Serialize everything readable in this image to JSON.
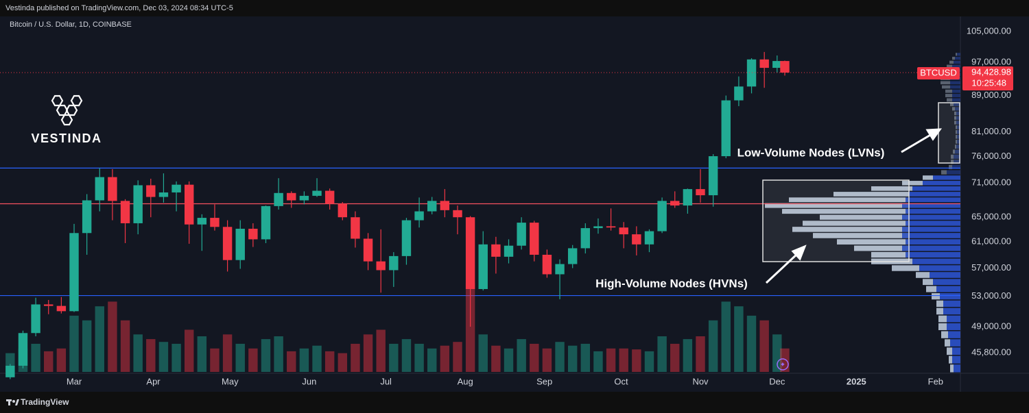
{
  "header": {
    "text": "Vestinda published on TradingView.com, Dec 03, 2024 08:34 UTC-5"
  },
  "footer": {
    "text": "TradingView"
  },
  "logo": {
    "text": "VESTINDA"
  },
  "chart_data": {
    "type": "candlestick",
    "title": "Bitcoin / U.S. Dollar, 1D, COINBASE",
    "log": true,
    "colors": {
      "up": "#22ab94",
      "down": "#f23645",
      "profile_total": "#2a4fc4",
      "profile_up": "#b2bfd0"
    },
    "xlim": [
      33.7,
      406.7
    ],
    "xticks": [
      {
        "value": 60,
        "label": "Mar"
      },
      {
        "value": 91,
        "label": "Apr"
      },
      {
        "value": 121,
        "label": "May"
      },
      {
        "value": 152,
        "label": "Jun"
      },
      {
        "value": 182,
        "label": "Jul"
      },
      {
        "value": 213,
        "label": "Aug"
      },
      {
        "value": 244,
        "label": "Sep"
      },
      {
        "value": 274,
        "label": "Oct"
      },
      {
        "value": 305,
        "label": "Nov"
      },
      {
        "value": 335,
        "label": "Dec"
      },
      {
        "value": 366,
        "label": "2025"
      },
      {
        "value": 397,
        "label": "Feb"
      }
    ],
    "ylim": [
      43600,
      108400
    ],
    "yticks": [
      {
        "value": 105000,
        "label": "105,000.00"
      },
      {
        "value": 97000,
        "label": "97,000.00"
      },
      {
        "value": 89000,
        "label": "89,000.00"
      },
      {
        "value": 81000,
        "label": "81,000.00"
      },
      {
        "value": 76000,
        "label": "76,000.00"
      },
      {
        "value": 71000,
        "label": "71,000.00"
      },
      {
        "value": 65000,
        "label": "65,000.00"
      },
      {
        "value": 61000,
        "label": "61,000.00"
      },
      {
        "value": 57000,
        "label": "57,000.00"
      },
      {
        "value": 53000,
        "label": "53,000.00"
      },
      {
        "value": 49000,
        "label": "49,000.00"
      },
      {
        "value": 45800,
        "label": "45,800.00"
      }
    ],
    "candles": {
      "x": [
        35,
        40,
        45,
        50,
        55,
        60,
        65,
        70,
        75,
        80,
        85,
        90,
        95,
        100,
        105,
        110,
        115,
        120,
        125,
        130,
        135,
        140,
        145,
        150,
        155,
        160,
        165,
        170,
        175,
        180,
        185,
        190,
        195,
        200,
        205,
        210,
        215,
        220,
        225,
        230,
        235,
        240,
        245,
        250,
        255,
        260,
        265,
        270,
        275,
        280,
        285,
        290,
        295,
        300,
        305,
        310,
        315,
        320,
        325,
        330,
        335,
        338
      ],
      "ohlc": [
        [
          43000,
          44500,
          42800,
          44300
        ],
        [
          44300,
          48500,
          44000,
          48200
        ],
        [
          48200,
          52800,
          47800,
          51900
        ],
        [
          51900,
          52500,
          50600,
          51700
        ],
        [
          51700,
          52900,
          50700,
          51000
        ],
        [
          51000,
          63900,
          50900,
          62400
        ],
        [
          62400,
          69000,
          59000,
          67900
        ],
        [
          67900,
          73800,
          66000,
          72100
        ],
        [
          72100,
          73600,
          64500,
          67800
        ],
        [
          67800,
          68100,
          60800,
          64000
        ],
        [
          64000,
          71500,
          62200,
          70600
        ],
        [
          70600,
          71800,
          65000,
          68500
        ],
        [
          68500,
          72800,
          67500,
          69300
        ],
        [
          69300,
          71300,
          66000,
          70700
        ],
        [
          70700,
          71300,
          60700,
          63800
        ],
        [
          63800,
          65500,
          59600,
          64900
        ],
        [
          64900,
          67200,
          62800,
          63400
        ],
        [
          63400,
          64500,
          56500,
          58200
        ],
        [
          58200,
          64500,
          56900,
          63100
        ],
        [
          63100,
          64000,
          60200,
          61400
        ],
        [
          61400,
          67000,
          60800,
          66900
        ],
        [
          66900,
          71900,
          66300,
          69200
        ],
        [
          69200,
          69500,
          66600,
          67900
        ],
        [
          67900,
          69500,
          67200,
          68700
        ],
        [
          68700,
          71900,
          68500,
          69600
        ],
        [
          69600,
          70000,
          66300,
          67300
        ],
        [
          67300,
          67600,
          64500,
          65000
        ],
        [
          65000,
          66000,
          60100,
          61500
        ],
        [
          61500,
          62400,
          56700,
          58000
        ],
        [
          58000,
          63000,
          53500,
          56700
        ],
        [
          56700,
          59400,
          54300,
          58800
        ],
        [
          58800,
          64900,
          57500,
          64500
        ],
        [
          64500,
          68400,
          63300,
          66000
        ],
        [
          66000,
          68500,
          65500,
          67800
        ],
        [
          67800,
          69900,
          65000,
          66200
        ],
        [
          66200,
          67000,
          62200,
          65000
        ],
        [
          65000,
          65200,
          49000,
          54000
        ],
        [
          54000,
          62700,
          53800,
          60600
        ],
        [
          60600,
          61800,
          56200,
          58700
        ],
        [
          58700,
          61400,
          57700,
          60400
        ],
        [
          60400,
          65000,
          59800,
          64100
        ],
        [
          64100,
          64400,
          58000,
          59000
        ],
        [
          59000,
          59800,
          55600,
          56100
        ],
        [
          56100,
          58300,
          52600,
          57600
        ],
        [
          57600,
          60500,
          57000,
          60000
        ],
        [
          60000,
          64000,
          59200,
          63200
        ],
        [
          63200,
          64800,
          62300,
          63500
        ],
        [
          63500,
          66500,
          62800,
          63300
        ],
        [
          63300,
          64200,
          60000,
          62200
        ],
        [
          62200,
          63500,
          58900,
          60600
        ],
        [
          60600,
          63000,
          59400,
          62700
        ],
        [
          62700,
          68400,
          62400,
          67800
        ],
        [
          67800,
          69500,
          66600,
          67000
        ],
        [
          67000,
          70000,
          65600,
          69900
        ],
        [
          69900,
          73600,
          67500,
          68800
        ],
        [
          68800,
          76500,
          66800,
          76100
        ],
        [
          76100,
          89000,
          75700,
          87900
        ],
        [
          87900,
          93500,
          86600,
          91100
        ],
        [
          91100,
          98000,
          89500,
          97700
        ],
        [
          97700,
          99600,
          90800,
          95600
        ],
        [
          95600,
          98700,
          94400,
          97300
        ],
        [
          97300,
          97400,
          93700,
          94428.98
        ]
      ],
      "volume": [
        20,
        25,
        30,
        22,
        25,
        60,
        55,
        70,
        75,
        55,
        40,
        35,
        32,
        30,
        45,
        38,
        25,
        40,
        30,
        25,
        35,
        38,
        22,
        25,
        28,
        22,
        20,
        30,
        40,
        45,
        30,
        35,
        30,
        25,
        28,
        32,
        95,
        40,
        28,
        25,
        35,
        30,
        25,
        32,
        28,
        30,
        22,
        25,
        25,
        24,
        22,
        38,
        30,
        35,
        38,
        55,
        75,
        70,
        60,
        55,
        40,
        25
      ]
    },
    "volume_profile": {
      "levels": [
        44000,
        45000,
        46000,
        47000,
        48000,
        49000,
        50000,
        51000,
        52000,
        53000,
        54000,
        55000,
        56000,
        57000,
        58000,
        59000,
        60000,
        61000,
        62000,
        63000,
        64000,
        65000,
        66000,
        67000,
        68000,
        69000,
        70000,
        71000,
        72000,
        73000,
        74000,
        75000,
        76000,
        77000,
        78000,
        79000,
        80000,
        81000,
        82000,
        83000,
        84000,
        85000,
        86000,
        87000,
        88000,
        89000,
        90000,
        91000,
        92000,
        93000,
        94000,
        95000,
        96000,
        97000,
        98000,
        99000
      ],
      "total": [
        10,
        12,
        12,
        15,
        18,
        20,
        20,
        25,
        25,
        30,
        35,
        40,
        45,
        60,
        70,
        80,
        85,
        80,
        85,
        85,
        80,
        85,
        80,
        85,
        80,
        75,
        70,
        55,
        40,
        20,
        12,
        10,
        10,
        8,
        6,
        5,
        5,
        5,
        5,
        6,
        6,
        6,
        8,
        10,
        12,
        12,
        12,
        15,
        15,
        15,
        18,
        15,
        12,
        10,
        8,
        5
      ],
      "up": [
        5,
        5,
        8,
        8,
        10,
        12,
        12,
        10,
        10,
        12,
        15,
        15,
        20,
        40,
        60,
        50,
        70,
        100,
        130,
        160,
        150,
        120,
        180,
        200,
        170,
        110,
        60,
        30,
        15,
        8,
        5,
        4,
        4,
        3,
        2,
        2,
        2,
        2,
        2,
        3,
        3,
        3,
        4,
        5,
        8,
        10,
        10,
        12,
        14,
        14,
        12,
        10,
        8,
        6,
        4,
        2
      ]
    },
    "levels": [
      {
        "value": 73800,
        "color": "#2962ff"
      },
      {
        "value": 67300,
        "color": "#f7525f"
      },
      {
        "value": 53100,
        "color": "#2962ff"
      }
    ],
    "last_price": {
      "symbol": "BTCUSD",
      "value": 94428.98,
      "label": "94,428.98",
      "countdown": "10:25:48"
    },
    "annotations": [
      {
        "text": "Low-Volume Nodes (LVNs)"
      },
      {
        "text": "High-Volume Nodes (HVNs)"
      }
    ]
  }
}
